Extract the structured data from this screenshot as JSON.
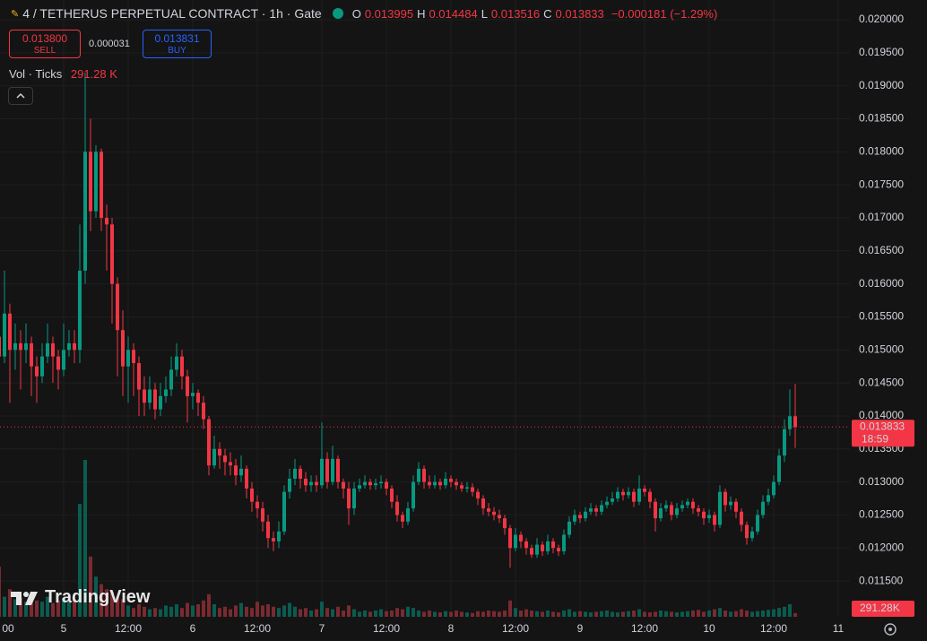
{
  "chart_data": {
    "type": "candlestick",
    "title": "4 / TETHERUS PERPETUAL CONTRACT · 1h · Gate",
    "ohlc_labels": [
      "O",
      "H",
      "L",
      "C"
    ],
    "change": "−0.000181 (−1.29%)",
    "categories": [
      "00",
      null,
      null,
      null,
      null,
      null,
      null,
      null,
      null,
      null,
      null,
      null,
      "5",
      null,
      null,
      null,
      null,
      null,
      null,
      null,
      null,
      null,
      null,
      null,
      "12:00",
      null,
      null,
      null,
      null,
      null,
      null,
      null,
      null,
      null,
      null,
      null,
      "6",
      null,
      null,
      null,
      null,
      null,
      null,
      null,
      null,
      null,
      null,
      null,
      "12:00",
      null,
      null,
      null,
      null,
      null,
      null,
      null,
      null,
      null,
      null,
      null,
      "7",
      null,
      null,
      null,
      null,
      null,
      null,
      null,
      null,
      null,
      null,
      null,
      "12:00",
      null,
      null,
      null,
      null,
      null,
      null,
      null,
      null,
      null,
      null,
      null,
      "8",
      null,
      null,
      null,
      null,
      null,
      null,
      null,
      null,
      null,
      null,
      null,
      "12:00",
      null,
      null,
      null,
      null,
      null,
      null,
      null,
      null,
      null,
      null,
      null,
      "9",
      null,
      null,
      null,
      null,
      null,
      null,
      null,
      null,
      null,
      null,
      null,
      "12:00",
      null,
      null,
      null,
      null,
      null,
      null,
      null,
      null,
      null,
      null,
      null,
      "10",
      null,
      null,
      null,
      null,
      null,
      null,
      null,
      null,
      null,
      null,
      null,
      "12:00",
      null,
      null,
      null,
      null,
      null,
      null,
      null,
      null,
      null,
      null,
      null,
      "11"
    ],
    "open": [
      0.0152,
      0.0149,
      0.01555,
      0.015,
      0.0151,
      0.015,
      0.0151,
      0.01475,
      0.0146,
      0.0149,
      0.0151,
      0.0149,
      0.0147,
      0.015,
      0.0151,
      0.015,
      0.0162,
      0.018,
      0.0171,
      0.018,
      0.017,
      0.0169,
      0.016,
      0.0153,
      0.01475,
      0.015,
      0.0148,
      0.0144,
      0.0142,
      0.0144,
      0.0141,
      0.0143,
      0.0144,
      0.0147,
      0.0149,
      0.0146,
      0.0143,
      0.01435,
      0.0142,
      0.01395,
      0.01325,
      0.0135,
      0.0134,
      0.0133,
      0.01325,
      0.0131,
      0.0132,
      0.0129,
      0.0127,
      0.0126,
      0.0124,
      0.01215,
      0.0121,
      0.01225,
      0.01285,
      0.01305,
      0.0132,
      0.01305,
      0.01295,
      0.013,
      0.01295,
      0.01335,
      0.013,
      0.01335,
      0.013,
      0.0129,
      0.0126,
      0.0129,
      0.01295,
      0.013,
      0.01295,
      0.01298,
      0.013,
      0.0129,
      0.0127,
      0.0125,
      0.0124,
      0.0126,
      0.013,
      0.0132,
      0.013,
      0.01295,
      0.013,
      0.01295,
      0.01305,
      0.013,
      0.01295,
      0.0129,
      0.01292,
      0.01285,
      0.01275,
      0.0126,
      0.01255,
      0.0125,
      0.01245,
      0.0123,
      0.012,
      0.0122,
      0.0121,
      0.012,
      0.0119,
      0.01205,
      0.01195,
      0.0121,
      0.012,
      0.01195,
      0.0122,
      0.0124,
      0.0125,
      0.01245,
      0.01255,
      0.0126,
      0.01255,
      0.01265,
      0.0127,
      0.01275,
      0.01285,
      0.0128,
      0.01285,
      0.0127,
      0.0129,
      0.01285,
      0.0127,
      0.01245,
      0.0126,
      0.01265,
      0.0125,
      0.0126,
      0.01265,
      0.0127,
      0.0126,
      0.01255,
      0.01245,
      0.0125,
      0.01235,
      0.01285,
      0.01265,
      0.0127,
      0.01255,
      0.01235,
      0.01215,
      0.01225,
      0.0125,
      0.0127,
      0.0128,
      0.013,
      0.0134,
      0.0138,
      0.013995,
      null,
      null,
      null,
      null,
      null,
      null,
      null,
      null
    ],
    "high": [
      0.0153,
      0.0162,
      0.0157,
      0.0154,
      0.0153,
      0.0154,
      0.0152,
      0.0149,
      0.0151,
      0.0154,
      0.0152,
      0.015,
      0.0154,
      0.0153,
      0.0153,
      0.0169,
      0.0192,
      0.0185,
      0.0181,
      0.01805,
      0.0172,
      0.017,
      0.0161,
      0.0156,
      0.0152,
      0.0151,
      0.0149,
      0.0146,
      0.0146,
      0.0145,
      0.0145,
      0.0146,
      0.0149,
      0.0151,
      0.015,
      0.0147,
      0.0145,
      0.0144,
      0.0143,
      0.014,
      0.0137,
      0.0136,
      0.0135,
      0.01345,
      0.01335,
      0.0134,
      0.01325,
      0.013,
      0.0128,
      0.0127,
      0.0125,
      0.01225,
      0.0124,
      0.01295,
      0.0132,
      0.01335,
      0.01325,
      0.01315,
      0.0131,
      0.0131,
      0.0139,
      0.01345,
      0.01355,
      0.0134,
      0.01305,
      0.013,
      0.013,
      0.01305,
      0.0131,
      0.01305,
      0.01305,
      0.0131,
      0.01305,
      0.01295,
      0.0128,
      0.01255,
      0.0127,
      0.0131,
      0.0133,
      0.01325,
      0.0131,
      0.0131,
      0.01305,
      0.01315,
      0.0131,
      0.01305,
      0.013,
      0.013,
      0.01298,
      0.0129,
      0.0128,
      0.01268,
      0.01262,
      0.01258,
      0.0125,
      0.01235,
      0.0123,
      0.01225,
      0.01215,
      0.01205,
      0.01215,
      0.0121,
      0.0122,
      0.01215,
      0.01205,
      0.01228,
      0.01248,
      0.01258,
      0.01255,
      0.01262,
      0.01268,
      0.01265,
      0.01272,
      0.01278,
      0.01285,
      0.01292,
      0.0129,
      0.01292,
      0.0129,
      0.0131,
      0.01295,
      0.0129,
      0.01275,
      0.01268,
      0.01272,
      0.0127,
      0.01268,
      0.01272,
      0.01275,
      0.01275,
      0.01265,
      0.0126,
      0.01258,
      0.01255,
      0.01295,
      0.0129,
      0.01278,
      0.01275,
      0.0126,
      0.0124,
      0.01232,
      0.01258,
      0.0128,
      0.0129,
      0.0131,
      0.0135,
      0.01395,
      0.0144,
      0.014484,
      null,
      null,
      null,
      null,
      null,
      null,
      null,
      null
    ],
    "low": [
      0.0143,
      0.0148,
      0.0142,
      0.0147,
      0.0144,
      0.0148,
      0.0143,
      0.0142,
      0.0145,
      0.0148,
      0.0145,
      0.0144,
      0.0146,
      0.0149,
      0.0148,
      0.0148,
      0.016,
      0.0168,
      0.017,
      0.0168,
      0.0162,
      0.0154,
      0.0146,
      0.0143,
      0.0142,
      0.0143,
      0.014,
      0.014,
      0.0141,
      0.01395,
      0.014,
      0.0142,
      0.0143,
      0.0146,
      0.0144,
      0.0139,
      0.0141,
      0.014,
      0.0138,
      0.0131,
      0.0132,
      0.0132,
      0.0131,
      0.0131,
      0.01295,
      0.013,
      0.01275,
      0.01255,
      0.01245,
      0.01225,
      0.012,
      0.01195,
      0.012,
      0.0122,
      0.01275,
      0.01295,
      0.0129,
      0.01285,
      0.01285,
      0.01285,
      0.0129,
      0.0129,
      0.01295,
      0.0129,
      0.01275,
      0.01235,
      0.0125,
      0.01285,
      0.0129,
      0.01288,
      0.01288,
      0.0129,
      0.0128,
      0.0126,
      0.0124,
      0.0123,
      0.01235,
      0.01255,
      0.01295,
      0.0129,
      0.0129,
      0.0129,
      0.01288,
      0.0129,
      0.01292,
      0.01288,
      0.01285,
      0.01284,
      0.01278,
      0.01265,
      0.0125,
      0.01248,
      0.01242,
      0.01238,
      0.0122,
      0.0117,
      0.01195,
      0.012,
      0.0119,
      0.01185,
      0.01185,
      0.01188,
      0.0119,
      0.01192,
      0.01188,
      0.0119,
      0.01215,
      0.01235,
      0.01238,
      0.0124,
      0.0125,
      0.01248,
      0.0125,
      0.0126,
      0.01265,
      0.0127,
      0.01272,
      0.01275,
      0.01262,
      0.01265,
      0.01278,
      0.0126,
      0.01225,
      0.0124,
      0.01255,
      0.01242,
      0.01245,
      0.01255,
      0.0126,
      0.01252,
      0.01248,
      0.01235,
      0.01238,
      0.01225,
      0.0123,
      0.01255,
      0.01258,
      0.01245,
      0.01225,
      0.01205,
      0.0121,
      0.0122,
      0.01245,
      0.01265,
      0.01275,
      0.01295,
      0.0133,
      0.0137,
      0.013516,
      null,
      null,
      null,
      null,
      null,
      null,
      null,
      null
    ],
    "close": [
      0.0149,
      0.01555,
      0.015,
      0.0151,
      0.015,
      0.0151,
      0.01475,
      0.0146,
      0.0149,
      0.0151,
      0.0149,
      0.0147,
      0.015,
      0.0151,
      0.015,
      0.0162,
      0.018,
      0.0171,
      0.018,
      0.017,
      0.0169,
      0.016,
      0.0153,
      0.01475,
      0.015,
      0.0148,
      0.0144,
      0.0142,
      0.0144,
      0.0141,
      0.0143,
      0.0144,
      0.0147,
      0.0149,
      0.0146,
      0.0143,
      0.01435,
      0.0142,
      0.01395,
      0.01325,
      0.0135,
      0.0134,
      0.0133,
      0.01325,
      0.0131,
      0.0132,
      0.0129,
      0.0127,
      0.0126,
      0.0124,
      0.01215,
      0.0121,
      0.01225,
      0.01285,
      0.01305,
      0.0132,
      0.01305,
      0.01295,
      0.013,
      0.01295,
      0.01335,
      0.013,
      0.01335,
      0.013,
      0.0129,
      0.0126,
      0.0129,
      0.01295,
      0.013,
      0.01295,
      0.01298,
      0.013,
      0.0129,
      0.0127,
      0.0125,
      0.0124,
      0.0126,
      0.013,
      0.0132,
      0.013,
      0.01295,
      0.013,
      0.01295,
      0.01305,
      0.013,
      0.01295,
      0.0129,
      0.01292,
      0.01285,
      0.01275,
      0.0126,
      0.01255,
      0.0125,
      0.01245,
      0.0123,
      0.012,
      0.0122,
      0.0121,
      0.012,
      0.0119,
      0.01205,
      0.01195,
      0.0121,
      0.012,
      0.01195,
      0.0122,
      0.0124,
      0.0125,
      0.01245,
      0.01255,
      0.0126,
      0.01255,
      0.01265,
      0.0127,
      0.01275,
      0.01285,
      0.0128,
      0.01285,
      0.0127,
      0.0129,
      0.01285,
      0.0127,
      0.01245,
      0.0126,
      0.01265,
      0.0125,
      0.0126,
      0.01265,
      0.0127,
      0.0126,
      0.01255,
      0.01245,
      0.0125,
      0.01235,
      0.01285,
      0.01265,
      0.0127,
      0.01255,
      0.01235,
      0.01215,
      0.01225,
      0.0125,
      0.0127,
      0.0128,
      0.013,
      0.0134,
      0.0138,
      0.013995,
      0.013833,
      null,
      null,
      null,
      null,
      null,
      null,
      null,
      null
    ],
    "volume": [
      4000,
      1600,
      2200,
      1400,
      1500,
      1200,
      1800,
      1300,
      1200,
      1600,
      1100,
      1300,
      1500,
      1200,
      1400,
      9000,
      12500,
      4800,
      3200,
      2600,
      2200,
      2000,
      1600,
      1400,
      900,
      700,
      1000,
      800,
      600,
      700,
      600,
      900,
      800,
      1000,
      700,
      1100,
      900,
      1000,
      1300,
      1800,
      1000,
      700,
      800,
      600,
      900,
      1100,
      800,
      700,
      1200,
      900,
      1000,
      800,
      700,
      900,
      1100,
      800,
      600,
      700,
      500,
      600,
      1200,
      700,
      600,
      800,
      500,
      900,
      600,
      400,
      500,
      400,
      500,
      600,
      450,
      500,
      700,
      600,
      800,
      700,
      500,
      400,
      500,
      400,
      350,
      450,
      400,
      500,
      400,
      350,
      300,
      450,
      400,
      500,
      450,
      400,
      500,
      1300,
      700,
      500,
      600,
      500,
      450,
      400,
      500,
      400,
      350,
      500,
      600,
      400,
      450,
      400,
      350,
      400,
      450,
      500,
      400,
      350,
      400,
      450,
      500,
      600,
      400,
      350,
      400,
      500,
      450,
      400,
      350,
      400,
      450,
      500,
      550,
      400,
      500,
      600,
      700,
      500,
      400,
      450,
      600,
      500,
      400,
      450,
      500,
      550,
      600,
      700,
      800,
      1000,
      291.28,
      null,
      null,
      null,
      null,
      null,
      null,
      null,
      null
    ],
    "ylim": [
      0.010958,
      0.020299
    ],
    "yticks": [
      {
        "value": 0.0115,
        "label": "0.011500"
      },
      {
        "value": 0.012,
        "label": "0.012000"
      },
      {
        "value": 0.0125,
        "label": "0.012500"
      },
      {
        "value": 0.013,
        "label": "0.013000"
      },
      {
        "value": 0.0135,
        "label": "0.013500"
      },
      {
        "value": 0.014,
        "label": "0.014000"
      },
      {
        "value": 0.0145,
        "label": "0.014500"
      },
      {
        "value": 0.015,
        "label": "0.015000"
      },
      {
        "value": 0.0155,
        "label": "0.015500"
      },
      {
        "value": 0.016,
        "label": "0.016000"
      },
      {
        "value": 0.0165,
        "label": "0.016500"
      },
      {
        "value": 0.017,
        "label": "0.017000"
      },
      {
        "value": 0.0175,
        "label": "0.017500"
      },
      {
        "value": 0.018,
        "label": "0.018000"
      },
      {
        "value": 0.0185,
        "label": "0.018500"
      },
      {
        "value": 0.019,
        "label": "0.019000"
      },
      {
        "value": 0.0195,
        "label": "0.019500"
      },
      {
        "value": 0.02,
        "label": "0.020000"
      }
    ],
    "grid": true,
    "up_color": "#089981",
    "down_color": "#f23645",
    "volume_up_color": "#0a5c4f",
    "volume_down_color": "#7a2a31",
    "volume_legend_label": "Vol · Ticks",
    "volume_legend_value": "291.28 K",
    "volume_axis_label": "291.28K",
    "countdown": "18:59"
  },
  "trade_panel": {
    "sell_price": "0.013800",
    "sell_label": "SELL",
    "spread": "0.000031",
    "buy_price": "0.013831",
    "buy_label": "BUY"
  },
  "branding": "TradingView"
}
